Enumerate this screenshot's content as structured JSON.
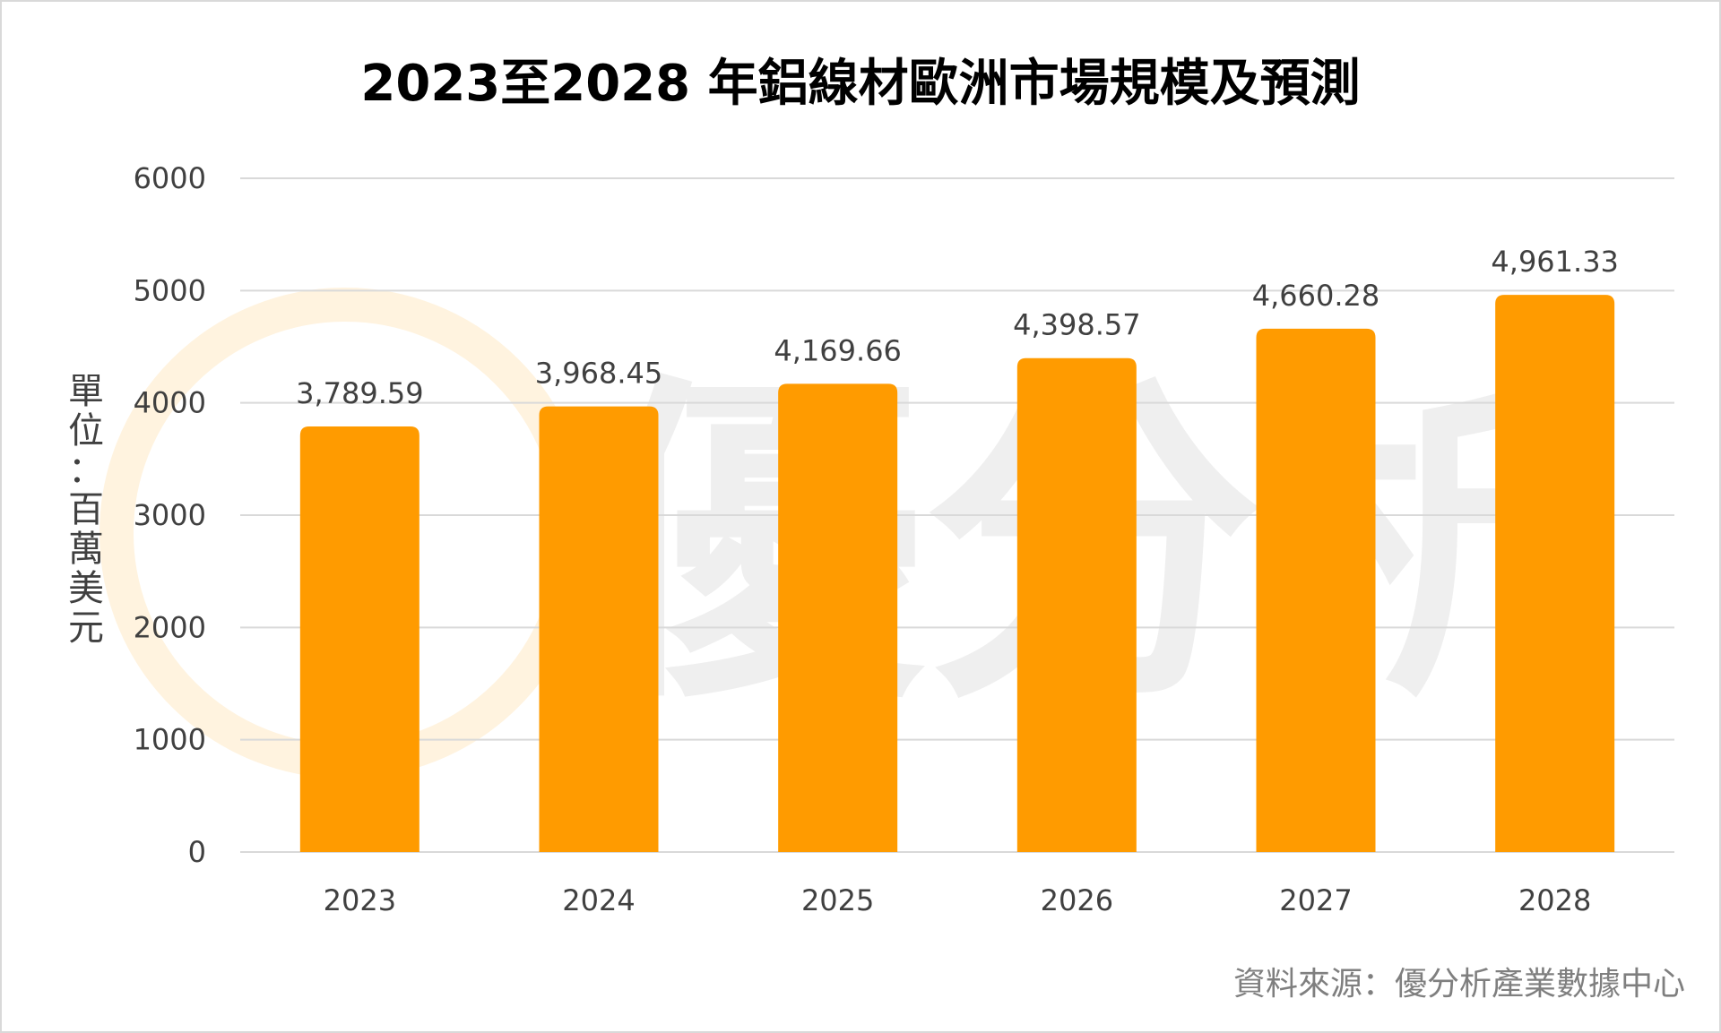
{
  "chart_data": {
    "type": "bar",
    "title": "2023至2028 年鋁線材歐洲市場規模及預測",
    "ylabel": "單位：百萬美元",
    "xlabel": "",
    "categories": [
      "2023",
      "2024",
      "2025",
      "2026",
      "2027",
      "2028"
    ],
    "values": [
      3789.59,
      3968.45,
      4169.66,
      4398.57,
      4660.28,
      4961.33
    ],
    "data_labels": [
      "3,789.59",
      "3,968.45",
      "4,169.66",
      "4,398.57",
      "4,660.28",
      "4,961.33"
    ],
    "ylim": [
      0,
      6000
    ],
    "yticks": [
      0,
      1000,
      2000,
      3000,
      4000,
      5000,
      6000
    ],
    "grid": true,
    "legend": "none",
    "bar_color": "#FF9B00",
    "gridline_color": "#d9d9d9"
  },
  "source_note": "資料來源：優分析產業數據中心",
  "watermark": {
    "text": "優分析",
    "logo_color": "#FFF3DF"
  }
}
